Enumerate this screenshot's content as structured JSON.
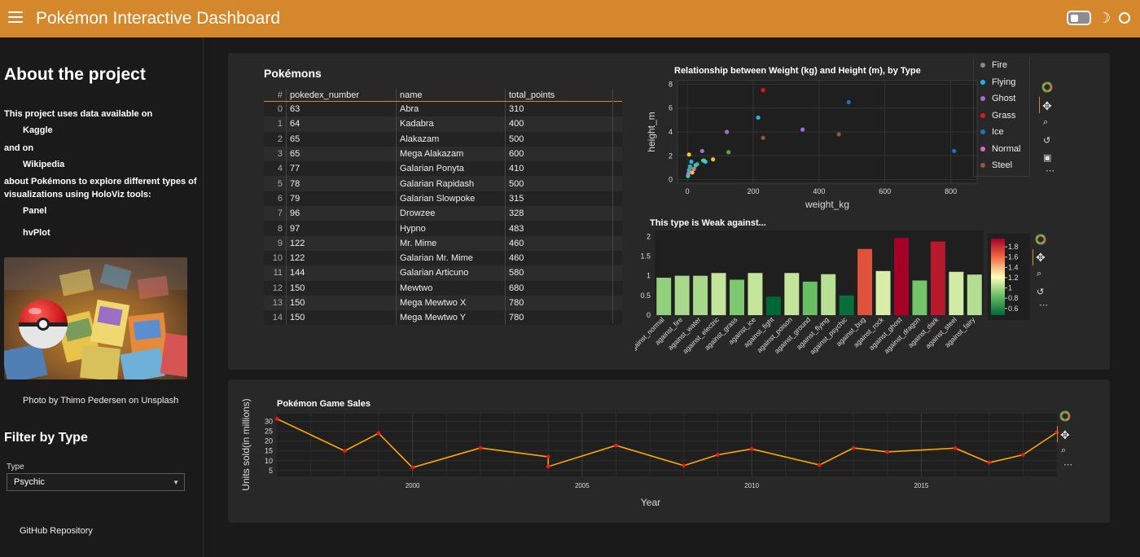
{
  "header": {
    "title": "Pokémon Interactive Dashboard"
  },
  "sidebar": {
    "about_title": "About the project",
    "intro_1": "This project uses data available on",
    "link_kaggle": "Kaggle",
    "and_on": "and on",
    "link_wikipedia": "Wikipedia",
    "intro_2a": "about Pokémons to explore different types of",
    "intro_2b": "visualizations using HoloViz tools:",
    "tool_panel": "Panel",
    "tool_hvplot": "hvPlot",
    "photo_caption": "Photo by Thimo Pedersen on Unsplash",
    "filter_title": "Filter by Type",
    "type_label": "Type",
    "type_value": "Psychic",
    "github_link": "GitHub Repository"
  },
  "table": {
    "title": "Pokémons",
    "columns": [
      "#",
      "pokedex_number",
      "name",
      "total_points"
    ],
    "rows": [
      [
        "0",
        "63",
        "Abra",
        "310"
      ],
      [
        "1",
        "64",
        "Kadabra",
        "400"
      ],
      [
        "2",
        "65",
        "Alakazam",
        "500"
      ],
      [
        "3",
        "65",
        "Mega Alakazam",
        "600"
      ],
      [
        "4",
        "77",
        "Galarian Ponyta",
        "410"
      ],
      [
        "5",
        "78",
        "Galarian Rapidash",
        "500"
      ],
      [
        "6",
        "79",
        "Galarian Slowpoke",
        "315"
      ],
      [
        "7",
        "96",
        "Drowzee",
        "328"
      ],
      [
        "8",
        "97",
        "Hypno",
        "483"
      ],
      [
        "9",
        "122",
        "Mr. Mime",
        "460"
      ],
      [
        "10",
        "122",
        "Galarian Mr. Mime",
        "460"
      ],
      [
        "11",
        "144",
        "Galarian Articuno",
        "580"
      ],
      [
        "12",
        "150",
        "Mewtwo",
        "680"
      ],
      [
        "13",
        "150",
        "Mega Mewtwo X",
        "780"
      ],
      [
        "14",
        "150",
        "Mega Mewtwo Y",
        "780"
      ]
    ]
  },
  "colors": {
    "accent": "#d4872b",
    "line": "#ffa500",
    "marker": "#e8161d"
  },
  "chart_data": [
    {
      "type": "scatter",
      "title": "Relationship between Weight (kg) and Height (m), by Type",
      "xlabel": "weight_kg",
      "ylabel": "height_m",
      "xlim": [
        -30,
        880
      ],
      "ylim": [
        -0.3,
        8.3
      ],
      "xticks": [
        0,
        200,
        400,
        600,
        800
      ],
      "yticks": [
        0,
        2,
        4,
        6,
        8
      ],
      "legend_position": "right",
      "series": [
        {
          "name": "Fire",
          "color": "#888888",
          "points": []
        },
        {
          "name": "Flying",
          "color": "#1fb6ed",
          "points": [
            [
              5,
              0.8
            ],
            [
              12,
              1.5
            ],
            [
              8,
              1.1
            ],
            [
              55,
              1.5
            ],
            [
              215,
              5.2
            ]
          ]
        },
        {
          "name": "Ghost",
          "color": "#a46cd9",
          "points": [
            [
              120,
              4.0
            ],
            [
              350,
              4.2
            ],
            [
              45,
              2.4
            ]
          ]
        },
        {
          "name": "Grass",
          "color": "#e8161d",
          "points": [
            [
              230,
              7.5
            ]
          ]
        },
        {
          "name": "Ice",
          "color": "#1775c2",
          "points": [
            [
              490,
              6.5
            ],
            [
              810,
              2.4
            ]
          ]
        },
        {
          "name": "Normal",
          "color": "#e664c8",
          "points": [
            [
              3,
              0.5
            ],
            [
              20,
              0.9
            ]
          ]
        },
        {
          "name": "Steel",
          "color": "#8b5a3c",
          "points": [
            [
              230,
              3.5
            ],
            [
              460,
              3.8
            ]
          ]
        },
        {
          "name": "",
          "color": "#5aa64a",
          "points": [
            [
              125,
              2.3
            ],
            [
              10,
              1.0
            ],
            [
              30,
              1.3
            ]
          ]
        },
        {
          "name": "",
          "color": "#f2c230",
          "points": [
            [
              5,
              2.1
            ],
            [
              78,
              1.7
            ],
            [
              50,
              1.6
            ],
            [
              15,
              0.6
            ]
          ]
        },
        {
          "name": "",
          "color": "#2ecfc0",
          "points": [
            [
              2,
              0.3
            ],
            [
              48,
              1.6
            ],
            [
              25,
              1.2
            ]
          ]
        }
      ]
    },
    {
      "type": "bar",
      "title": "This type is Weak against...",
      "categories": [
        "against_normal",
        "against_fire",
        "against_water",
        "against_electric",
        "against_grass",
        "against_ice",
        "against_fight",
        "against_poison",
        "against_ground",
        "against_flying",
        "against_psychic",
        "against_bug",
        "against_rock",
        "against_ghost",
        "against_dragon",
        "against_dark",
        "against_steel",
        "against_fairy"
      ],
      "values": [
        0.95,
        1.0,
        1.0,
        1.07,
        0.9,
        1.07,
        0.47,
        1.07,
        0.85,
        1.04,
        0.5,
        1.68,
        1.12,
        1.96,
        0.88,
        1.87,
        1.1,
        1.03
      ],
      "ylim": [
        0,
        2.15
      ],
      "yticks": [
        0,
        0.5,
        1,
        1.5,
        2
      ],
      "colorbar": {
        "min": 0.47,
        "max": 1.96,
        "ticks": [
          0.6,
          0.8,
          1,
          1.2,
          1.4,
          1.6,
          1.8
        ]
      }
    },
    {
      "type": "line",
      "title": "Pokémon Game Sales",
      "xlabel": "Year",
      "ylabel": "Units sold(in millions)",
      "xlim": [
        1996,
        2019
      ],
      "ylim": [
        2,
        34
      ],
      "xticks": [
        2000,
        2005,
        2010,
        2015
      ],
      "yticks": [
        5,
        10,
        15,
        20,
        25,
        30
      ],
      "x": [
        1996,
        1998,
        1999,
        2000,
        2002,
        2004,
        2004,
        2006,
        2008,
        2009,
        2010,
        2012,
        2013,
        2014,
        2016,
        2017,
        2018,
        2019
      ],
      "values": [
        31.4,
        15.0,
        24.0,
        6.5,
        16.5,
        12.0,
        7.0,
        17.8,
        7.5,
        13.0,
        16.0,
        7.8,
        16.5,
        14.5,
        16.4,
        9.0,
        13.0,
        24.5
      ]
    }
  ]
}
